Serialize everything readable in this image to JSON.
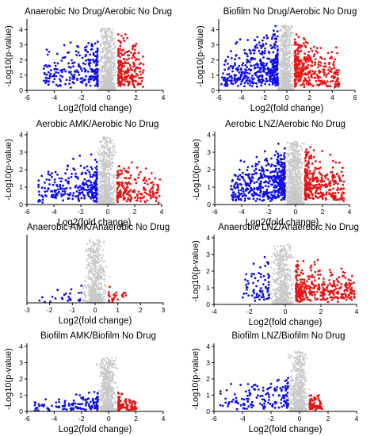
{
  "figure": {
    "colors": {
      "down": "#1010e6",
      "up": "#e61414",
      "ns": "#c8c8c8",
      "axis": "#000000"
    },
    "panels": [
      {
        "title": "Anaerobic No Drug/Aerobic No Drug",
        "xlabel": "Log2(fold change)",
        "ylabel": "-Log10(p-value)",
        "xlim": [
          -6,
          4
        ],
        "ylim": [
          0,
          4.5
        ],
        "xticks": [
          -6,
          -4,
          -2,
          0,
          2,
          4
        ],
        "yticks": [
          0,
          1,
          2,
          3,
          4
        ],
        "show_ylabel": true,
        "ylabel_digits": 0,
        "seed": 11,
        "down": {
          "n": 240,
          "xmin": -4.8,
          "xmax": -0.8,
          "ymax": 4.3
        },
        "up": {
          "n": 210,
          "xmin": 0.7,
          "xmax": 2.6,
          "ymax": 4.2
        },
        "ns": {
          "n": 700,
          "xmin": -0.95,
          "xmax": 0.75,
          "ymax": 4.1
        }
      },
      {
        "title": "Biofilm No Drug/Aerobic No Drug",
        "xlabel": "Log2(fold change)",
        "ylabel": "-Log10(p-value)",
        "xlim": [
          -6,
          6
        ],
        "ylim": [
          0,
          4.5
        ],
        "xticks": [
          -6,
          -4,
          -2,
          0,
          2,
          4,
          6
        ],
        "yticks": [
          0,
          1,
          2,
          3,
          4
        ],
        "show_ylabel": true,
        "ylabel_digits": 0,
        "seed": 23,
        "down": {
          "n": 420,
          "xmin": -5.8,
          "xmax": -0.8,
          "ymax": 4.4
        },
        "up": {
          "n": 330,
          "xmin": 0.7,
          "xmax": 4.6,
          "ymax": 4.6
        },
        "ns": {
          "n": 800,
          "xmin": -0.95,
          "xmax": 0.75,
          "ymax": 4.3
        }
      },
      {
        "title": "Aerobic AMK/Aerobic No Drug",
        "xlabel": "Log2(fold change)",
        "ylabel": "-Log10(p-value)",
        "xlim": [
          -6,
          4
        ],
        "ylim": [
          0,
          4
        ],
        "xticks": [
          -6,
          -4,
          -2,
          0,
          2,
          4
        ],
        "yticks": [
          0,
          1,
          2,
          3,
          4
        ],
        "show_ylabel": true,
        "ylabel_digits": 0,
        "seed": 37,
        "down": {
          "n": 260,
          "xmin": -5.2,
          "xmax": -0.8,
          "ymax": 3.2
        },
        "up": {
          "n": 190,
          "xmin": 0.7,
          "xmax": 3.9,
          "ymax": 2.9
        },
        "ns": {
          "n": 700,
          "xmin": -0.95,
          "xmax": 0.75,
          "ymax": 3.9
        }
      },
      {
        "title": "Aerobic LNZ/Aerobic No Drug",
        "xlabel": "Log2(fold change)",
        "ylabel": "-Log10(p-value)",
        "xlim": [
          -6,
          4
        ],
        "ylim": [
          0,
          4
        ],
        "xticks": [
          -6,
          -4,
          -2,
          0,
          2,
          4
        ],
        "yticks": [
          0,
          1,
          2,
          3,
          4
        ],
        "show_ylabel": true,
        "ylabel_digits": 0,
        "seed": 49,
        "down": {
          "n": 460,
          "xmin": -4.8,
          "xmax": -0.8,
          "ymax": 3.7
        },
        "up": {
          "n": 320,
          "xmin": 0.7,
          "xmax": 3.6,
          "ymax": 3.8
        },
        "ns": {
          "n": 800,
          "xmin": -0.95,
          "xmax": 0.75,
          "ymax": 3.6
        }
      },
      {
        "title": "Anaerobic AMK/Anaerobic No Drug",
        "xlabel": "Log2(fold change)",
        "ylabel": "",
        "xlim": [
          -3,
          3
        ],
        "ylim": [
          0,
          5
        ],
        "xticks": [
          -3,
          -2,
          -1,
          0,
          1,
          2,
          3
        ],
        "yticks": [],
        "show_ylabel": false,
        "ylabel_digits": 0,
        "seed": 61,
        "down": {
          "n": 24,
          "xmin": -2.6,
          "xmax": -0.6,
          "ymax": 1.4
        },
        "up": {
          "n": 26,
          "xmin": 0.6,
          "xmax": 1.4,
          "ymax": 1.6
        },
        "ns": {
          "n": 600,
          "xmin": -0.65,
          "xmax": 0.65,
          "ymax": 4.9
        }
      },
      {
        "title": "Anaerobic LNZ/Anaerobic No Drug",
        "xlabel": "Log2(fold change)",
        "ylabel": "-Log10(p-value)",
        "xlim": [
          -4,
          4
        ],
        "ylim": [
          0,
          4
        ],
        "xticks": [
          -4,
          -2,
          0,
          2,
          4
        ],
        "yticks": [
          0,
          1,
          2,
          3,
          4
        ],
        "show_ylabel": true,
        "ylabel_digits": 0,
        "seed": 73,
        "down": {
          "n": 70,
          "xmin": -2.4,
          "xmax": -0.9,
          "ymax": 3.4
        },
        "up": {
          "n": 330,
          "xmin": 0.6,
          "xmax": 3.9,
          "ymax": 3.1
        },
        "ns": {
          "n": 650,
          "xmin": -0.95,
          "xmax": 0.65,
          "ymax": 3.6
        }
      },
      {
        "title": "Biofilm AMK/Biofilm No Drug",
        "xlabel": "Log2(fold change)",
        "ylabel": "-Log10(p-value)",
        "xlim": [
          -6,
          4
        ],
        "ylim": [
          0,
          4
        ],
        "xticks": [
          -6,
          -4,
          -2,
          0,
          2,
          4
        ],
        "yticks": [
          0,
          1,
          2,
          3,
          4
        ],
        "show_ylabel": true,
        "ylabel_digits": 0,
        "seed": 89,
        "down": {
          "n": 120,
          "xmin": -5.5,
          "xmax": -0.8,
          "ymax": 1.3
        },
        "up": {
          "n": 90,
          "xmin": 0.7,
          "xmax": 2.1,
          "ymax": 1.3
        },
        "ns": {
          "n": 650,
          "xmin": -0.95,
          "xmax": 0.75,
          "ymax": 3.3
        }
      },
      {
        "title": "Biofilm LNZ/Biofilm No Drug",
        "xlabel": "Log2(fold change)",
        "ylabel": "-Log10(p-value)",
        "xlim": [
          -6,
          4
        ],
        "ylim": [
          0,
          4
        ],
        "xticks": [
          -6,
          -4,
          -2,
          0,
          2,
          4
        ],
        "yticks": [
          0,
          1,
          2,
          3,
          4
        ],
        "show_ylabel": true,
        "ylabel_digits": 0,
        "seed": 97,
        "down": {
          "n": 150,
          "xmin": -5.6,
          "xmax": -0.8,
          "ymax": 2.6
        },
        "up": {
          "n": 80,
          "xmin": 0.7,
          "xmax": 1.6,
          "ymax": 1.5
        },
        "ns": {
          "n": 650,
          "xmin": -0.95,
          "xmax": 0.75,
          "ymax": 3.7
        }
      }
    ]
  },
  "chart_data": [
    {
      "type": "scatter",
      "title": "Anaerobic No Drug/Aerobic No Drug",
      "xlabel": "Log2(fold change)",
      "ylabel": "-Log10(p-value)",
      "xlim": [
        -6,
        4
      ],
      "ylim": [
        0,
        4.5
      ],
      "series": [
        {
          "name": "",
          "color": "#1010e6",
          "x_range": [
            -4.8,
            -0.8
          ],
          "y_max": 4.3
        },
        {
          "name": "",
          "color": "#e61414",
          "x_range": [
            0.7,
            2.6
          ],
          "y_max": 4.2
        },
        {
          "name": "",
          "color": "#c8c8c8",
          "x_range": [
            -0.95,
            0.75
          ],
          "y_max": 4.1
        }
      ],
      "grid": false,
      "legend": "none"
    },
    {
      "type": "scatter",
      "title": "Biofilm No Drug/Aerobic No Drug",
      "xlabel": "Log2(fold change)",
      "ylabel": "-Log10(p-value)",
      "xlim": [
        -6,
        6
      ],
      "ylim": [
        0,
        4.5
      ],
      "series": [
        {
          "name": "",
          "color": "#1010e6",
          "x_range": [
            -5.8,
            -0.8
          ],
          "y_max": 4.4
        },
        {
          "name": "",
          "color": "#e61414",
          "x_range": [
            0.7,
            4.6
          ],
          "y_max": 4.6
        },
        {
          "name": "",
          "color": "#c8c8c8",
          "x_range": [
            -0.95,
            0.75
          ],
          "y_max": 4.3
        }
      ],
      "grid": false,
      "legend": "none"
    },
    {
      "type": "scatter",
      "title": "Aerobic AMK/Aerobic No Drug",
      "xlabel": "Log2(fold change)",
      "ylabel": "-Log10(p-value)",
      "xlim": [
        -6,
        4
      ],
      "ylim": [
        0,
        4
      ],
      "series": [
        {
          "name": "",
          "color": "#1010e6",
          "x_range": [
            -5.2,
            -0.8
          ],
          "y_max": 3.2
        },
        {
          "name": "",
          "color": "#e61414",
          "x_range": [
            0.7,
            3.9
          ],
          "y_max": 2.9
        },
        {
          "name": "",
          "color": "#c8c8c8",
          "x_range": [
            -0.95,
            0.75
          ],
          "y_max": 3.9
        }
      ],
      "grid": false,
      "legend": "none"
    },
    {
      "type": "scatter",
      "title": "Aerobic LNZ/Aerobic No Drug",
      "xlabel": "Log2(fold change)",
      "ylabel": "-Log10(p-value)",
      "xlim": [
        -6,
        4
      ],
      "ylim": [
        0,
        4
      ],
      "series": [
        {
          "name": "",
          "color": "#1010e6",
          "x_range": [
            -4.8,
            -0.8
          ],
          "y_max": 3.7
        },
        {
          "name": "",
          "color": "#e61414",
          "x_range": [
            0.7,
            3.6
          ],
          "y_max": 3.8
        },
        {
          "name": "",
          "color": "#c8c8c8",
          "x_range": [
            -0.95,
            0.75
          ],
          "y_max": 3.6
        }
      ],
      "grid": false,
      "legend": "none"
    },
    {
      "type": "scatter",
      "title": "Anaerobic AMK/Anaerobic No Drug",
      "xlabel": "Log2(fold change)",
      "ylabel": "",
      "xlim": [
        -3,
        3
      ],
      "ylim": [
        0,
        5
      ],
      "series": [
        {
          "name": "",
          "color": "#1010e6",
          "x_range": [
            -2.6,
            -0.6
          ],
          "y_max": 1.4
        },
        {
          "name": "",
          "color": "#e61414",
          "x_range": [
            0.6,
            1.4
          ],
          "y_max": 1.6
        },
        {
          "name": "",
          "color": "#c8c8c8",
          "x_range": [
            -0.65,
            0.65
          ],
          "y_max": 4.9
        }
      ],
      "grid": false,
      "legend": "none"
    },
    {
      "type": "scatter",
      "title": "Anaerobic LNZ/Anaerobic No Drug",
      "xlabel": "Log2(fold change)",
      "ylabel": "-Log10(p-value)",
      "xlim": [
        -4,
        4
      ],
      "ylim": [
        0,
        4
      ],
      "series": [
        {
          "name": "",
          "color": "#1010e6",
          "x_range": [
            -2.4,
            -0.9
          ],
          "y_max": 3.4
        },
        {
          "name": "",
          "color": "#e61414",
          "x_range": [
            0.6,
            3.9
          ],
          "y_max": 3.1
        },
        {
          "name": "",
          "color": "#c8c8c8",
          "x_range": [
            -0.95,
            0.65
          ],
          "y_max": 3.6
        }
      ],
      "grid": false,
      "legend": "none"
    },
    {
      "type": "scatter",
      "title": "Biofilm AMK/Biofilm No Drug",
      "xlabel": "Log2(fold change)",
      "ylabel": "-Log10(p-value)",
      "xlim": [
        -6,
        4
      ],
      "ylim": [
        0,
        4
      ],
      "series": [
        {
          "name": "",
          "color": "#1010e6",
          "x_range": [
            -5.5,
            -0.8
          ],
          "y_max": 1.3
        },
        {
          "name": "",
          "color": "#e61414",
          "x_range": [
            0.7,
            2.1
          ],
          "y_max": 1.3
        },
        {
          "name": "",
          "color": "#c8c8c8",
          "x_range": [
            -0.95,
            0.75
          ],
          "y_max": 3.3
        }
      ],
      "grid": false,
      "legend": "none"
    },
    {
      "type": "scatter",
      "title": "Biofilm LNZ/Biofilm No Drug",
      "xlabel": "Log2(fold change)",
      "ylabel": "-Log10(p-value)",
      "xlim": [
        -6,
        4
      ],
      "ylim": [
        0,
        4
      ],
      "series": [
        {
          "name": "",
          "color": "#1010e6",
          "x_range": [
            -5.6,
            -0.8
          ],
          "y_max": 2.6
        },
        {
          "name": "",
          "color": "#e61414",
          "x_range": [
            0.7,
            1.6
          ],
          "y_max": 1.5
        },
        {
          "name": "",
          "color": "#c8c8c8",
          "x_range": [
            -0.95,
            0.75
          ],
          "y_max": 3.7
        }
      ],
      "grid": false,
      "legend": "none"
    }
  ]
}
